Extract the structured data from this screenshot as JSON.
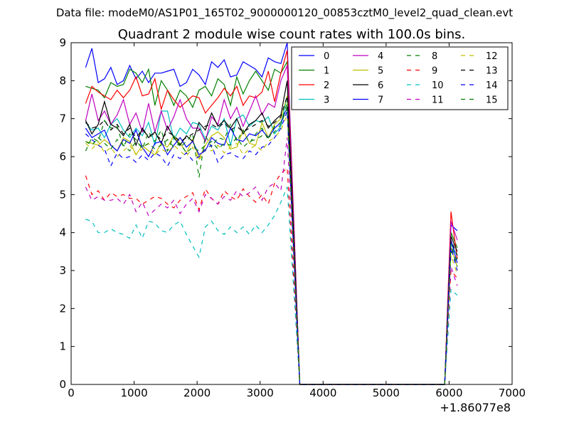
{
  "header": {
    "data_file": "Data file: modeM0/AS1P01_165T02_9000000120_00853cztM0_level2_quad_clean.evt"
  },
  "chart_data": {
    "type": "line",
    "title": "Quadrant 2 module wise count rates with 100.0s bins.",
    "xlabel": "",
    "ylabel": "",
    "x_offset_label": "+1.86077e8",
    "xlim": [
      0,
      7000
    ],
    "ylim": [
      0,
      9
    ],
    "xticks": [
      0,
      1000,
      2000,
      3000,
      4000,
      5000,
      6000,
      7000
    ],
    "yticks": [
      0,
      1,
      2,
      3,
      4,
      5,
      6,
      7,
      8,
      9
    ],
    "grid": false,
    "legend_position": "top-right",
    "legend_columns": 4,
    "x": [
      230,
      330,
      430,
      530,
      630,
      730,
      830,
      930,
      1030,
      1130,
      1230,
      1330,
      1430,
      1530,
      1630,
      1730,
      1830,
      1930,
      2030,
      2130,
      2230,
      2330,
      2430,
      2530,
      2630,
      2730,
      2830,
      2930,
      3030,
      3130,
      3230,
      3330,
      3430,
      3630,
      6030,
      6130
    ],
    "x_segments": [
      {
        "from": 3430,
        "to": 3630
      },
      {
        "from": 3630,
        "to": 5930,
        "value": 0
      },
      {
        "from": 5930,
        "to": 6030
      },
      {
        "from": 6030,
        "to": 6130
      }
    ],
    "series": [
      {
        "name": "0",
        "color": "#0000ff",
        "dash": "solid",
        "values": [
          8.35,
          8.85,
          7.95,
          8.05,
          8.35,
          7.9,
          8.0,
          8.4,
          8.05,
          8.25,
          7.95,
          8.2,
          8.2,
          8.25,
          8.3,
          7.85,
          7.95,
          8.3,
          8.15,
          7.9,
          8.5,
          8.35,
          8.55,
          8.1,
          8.15,
          8.5,
          8.4,
          8.3,
          8.1,
          8.6,
          8.5,
          8.45,
          9.0,
          0,
          4.2,
          4.05
        ]
      },
      {
        "name": "1",
        "color": "#008000",
        "dash": "solid",
        "values": [
          7.85,
          7.8,
          7.75,
          7.55,
          7.95,
          7.85,
          7.9,
          8.3,
          8.2,
          7.95,
          8.3,
          7.35,
          8.0,
          7.75,
          7.35,
          7.75,
          7.6,
          7.3,
          7.75,
          7.85,
          7.6,
          8.05,
          7.9,
          7.35,
          8.1,
          7.65,
          8.0,
          8.25,
          8.0,
          7.75,
          8.3,
          8.2,
          8.5,
          0,
          4.0,
          3.6
        ]
      },
      {
        "name": "2",
        "color": "#ff0000",
        "dash": "solid",
        "values": [
          7.4,
          7.85,
          7.7,
          7.6,
          7.5,
          7.75,
          7.55,
          7.75,
          8.1,
          7.6,
          7.65,
          8.05,
          7.25,
          7.75,
          7.5,
          7.3,
          7.45,
          7.6,
          7.55,
          7.15,
          7.35,
          7.55,
          7.8,
          7.6,
          7.85,
          7.35,
          7.6,
          7.55,
          7.7,
          8.25,
          7.45,
          8.2,
          8.8,
          0,
          4.55,
          3.3
        ]
      },
      {
        "name": "3",
        "color": "#00bfbf",
        "dash": "solid",
        "values": [
          6.9,
          6.7,
          6.75,
          6.5,
          6.85,
          7.0,
          6.7,
          6.5,
          6.75,
          6.55,
          6.9,
          6.3,
          7.2,
          7.2,
          6.45,
          6.75,
          6.6,
          6.9,
          6.85,
          6.45,
          6.8,
          6.7,
          7.0,
          6.3,
          7.0,
          7.1,
          6.8,
          6.95,
          6.9,
          7.05,
          6.6,
          6.8,
          7.6,
          0,
          3.7,
          3.4
        ]
      },
      {
        "name": "4",
        "color": "#bf00bf",
        "dash": "solid",
        "values": [
          6.95,
          7.65,
          6.95,
          7.2,
          6.85,
          7.1,
          7.5,
          6.85,
          7.15,
          6.65,
          7.4,
          6.65,
          7.2,
          6.7,
          7.05,
          7.5,
          7.0,
          6.75,
          6.75,
          6.4,
          7.05,
          6.85,
          7.5,
          7.0,
          7.3,
          6.8,
          7.2,
          7.6,
          7.1,
          7.4,
          7.3,
          8.0,
          8.4,
          0,
          4.3,
          3.8
        ]
      },
      {
        "name": "5",
        "color": "#bfbf00",
        "dash": "solid",
        "values": [
          6.4,
          6.35,
          6.3,
          6.45,
          6.3,
          6.15,
          6.5,
          6.4,
          6.05,
          6.3,
          6.15,
          6.05,
          6.35,
          6.25,
          6.55,
          6.35,
          6.1,
          6.45,
          5.95,
          6.3,
          6.55,
          6.65,
          6.5,
          6.2,
          6.25,
          6.7,
          6.35,
          6.3,
          6.9,
          6.5,
          6.85,
          7.0,
          7.6,
          0,
          3.6,
          3.1
        ]
      },
      {
        "name": "6",
        "color": "#000000",
        "dash": "solid",
        "values": [
          6.95,
          6.6,
          6.85,
          7.45,
          6.85,
          6.75,
          6.55,
          6.85,
          6.3,
          6.75,
          6.5,
          6.65,
          6.35,
          6.8,
          6.5,
          6.3,
          6.55,
          6.4,
          6.9,
          6.7,
          7.15,
          6.8,
          6.95,
          6.75,
          7.0,
          6.6,
          6.85,
          6.95,
          7.15,
          6.75,
          6.95,
          7.1,
          8.0,
          0,
          3.9,
          3.5
        ]
      },
      {
        "name": "7",
        "color": "#0000ff",
        "dash": "solid",
        "values": [
          6.75,
          6.5,
          6.6,
          6.7,
          6.3,
          6.15,
          6.45,
          6.35,
          6.7,
          6.25,
          6.0,
          6.35,
          6.4,
          6.05,
          6.3,
          6.5,
          6.25,
          6.4,
          6.05,
          6.15,
          6.5,
          6.35,
          6.3,
          6.75,
          6.45,
          6.4,
          6.6,
          6.55,
          6.7,
          6.5,
          6.75,
          6.9,
          7.3,
          0,
          3.8,
          3.2
        ]
      },
      {
        "name": "8",
        "color": "#008000",
        "dash": "dashed",
        "values": [
          6.15,
          6.5,
          6.4,
          6.95,
          6.75,
          6.8,
          6.25,
          6.6,
          6.45,
          6.2,
          6.65,
          6.4,
          6.7,
          6.15,
          6.55,
          6.25,
          6.4,
          6.6,
          5.45,
          6.55,
          6.25,
          6.5,
          6.45,
          6.85,
          6.4,
          6.7,
          6.35,
          6.6,
          6.75,
          6.45,
          6.8,
          6.9,
          7.4,
          0,
          3.5,
          3.3
        ]
      },
      {
        "name": "9",
        "color": "#ff0000",
        "dash": "dashed",
        "values": [
          5.5,
          5.0,
          5.1,
          4.85,
          5.05,
          4.95,
          5.0,
          4.9,
          4.9,
          4.75,
          4.85,
          4.95,
          4.9,
          4.75,
          4.65,
          4.85,
          4.95,
          5.05,
          4.6,
          5.15,
          4.9,
          4.75,
          5.1,
          4.95,
          4.85,
          5.15,
          4.95,
          4.8,
          5.0,
          4.75,
          5.3,
          5.55,
          5.7,
          0,
          3.0,
          2.8
        ]
      },
      {
        "name": "10",
        "color": "#00bfbf",
        "dash": "dashed",
        "values": [
          4.35,
          4.3,
          4.0,
          4.0,
          4.1,
          4.0,
          3.95,
          3.85,
          4.2,
          3.85,
          4.3,
          4.25,
          4.05,
          4.0,
          4.2,
          4.3,
          3.95,
          3.65,
          3.35,
          4.15,
          4.3,
          4.05,
          3.95,
          4.15,
          4.0,
          4.15,
          3.95,
          4.2,
          4.0,
          4.2,
          4.45,
          4.8,
          5.2,
          0,
          2.5,
          2.35
        ]
      },
      {
        "name": "11",
        "color": "#bf00bf",
        "dash": "dashed",
        "values": [
          5.2,
          4.85,
          4.95,
          4.85,
          4.85,
          4.9,
          4.75,
          5.0,
          4.55,
          4.8,
          4.45,
          4.6,
          4.75,
          4.65,
          4.85,
          4.5,
          4.75,
          4.9,
          4.55,
          5.0,
          4.9,
          4.75,
          4.95,
          4.85,
          5.1,
          4.95,
          5.05,
          5.2,
          4.85,
          5.2,
          5.3,
          5.1,
          6.5,
          0,
          3.1,
          2.6
        ]
      },
      {
        "name": "12",
        "color": "#bfbf00",
        "dash": "dashed",
        "values": [
          6.35,
          6.2,
          6.4,
          6.1,
          6.25,
          6.0,
          6.15,
          6.3,
          6.05,
          6.2,
          6.35,
          6.05,
          6.2,
          6.1,
          6.3,
          6.15,
          6.0,
          6.25,
          5.9,
          6.2,
          6.15,
          6.3,
          6.1,
          6.25,
          6.35,
          6.05,
          6.2,
          6.3,
          6.15,
          6.4,
          6.5,
          6.7,
          7.1,
          0,
          3.4,
          2.9
        ]
      },
      {
        "name": "13",
        "color": "#000000",
        "dash": "dashed",
        "values": [
          6.9,
          6.75,
          6.8,
          6.95,
          6.7,
          6.85,
          6.6,
          6.75,
          6.5,
          6.7,
          6.55,
          6.6,
          6.45,
          6.65,
          6.55,
          6.4,
          6.5,
          6.6,
          6.7,
          6.8,
          6.85,
          6.75,
          6.9,
          6.7,
          6.8,
          6.65,
          6.75,
          6.85,
          6.95,
          6.8,
          6.9,
          7.05,
          7.6,
          0,
          3.8,
          3.4
        ]
      },
      {
        "name": "14",
        "color": "#0000ff",
        "dash": "dashed",
        "values": [
          6.6,
          6.45,
          6.3,
          6.2,
          5.75,
          6.1,
          5.95,
          6.0,
          5.85,
          6.05,
          5.9,
          6.1,
          6.0,
          5.75,
          6.05,
          5.95,
          6.1,
          5.9,
          6.0,
          6.2,
          6.3,
          5.85,
          6.05,
          6.1,
          6.0,
          5.95,
          6.15,
          6.05,
          6.25,
          6.3,
          6.5,
          6.75,
          7.2,
          0,
          3.6,
          3.0
        ]
      },
      {
        "name": "15",
        "color": "#008000",
        "dash": "dashed",
        "values": [
          6.4,
          6.3,
          6.5,
          6.35,
          6.2,
          6.45,
          6.3,
          6.15,
          6.4,
          6.25,
          6.35,
          6.2,
          6.3,
          6.45,
          6.25,
          6.35,
          6.1,
          6.25,
          6.15,
          6.3,
          6.4,
          6.2,
          6.35,
          6.3,
          6.5,
          6.25,
          6.4,
          6.45,
          6.55,
          6.5,
          6.65,
          6.85,
          7.3,
          0,
          3.7,
          3.1
        ]
      }
    ]
  }
}
